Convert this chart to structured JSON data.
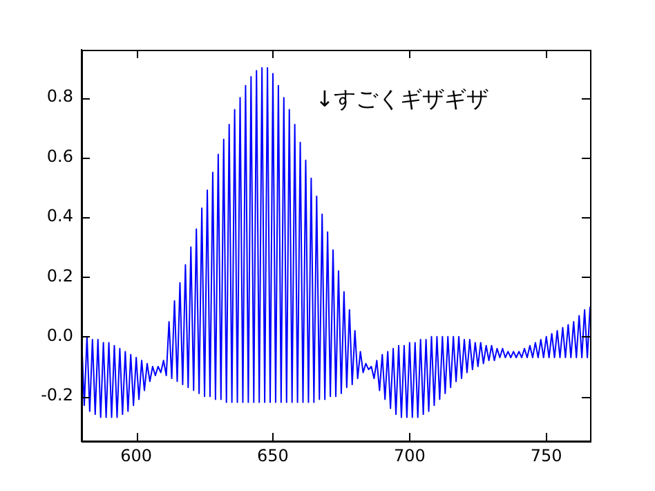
{
  "chart_data": {
    "type": "line",
    "color": "#0000ff",
    "xlim": [
      580,
      766
    ],
    "ylim": [
      -0.35,
      0.96
    ],
    "xticks": [
      600,
      650,
      700,
      750
    ],
    "yticks": [
      {
        "value": -0.2,
        "label": "-0.2"
      },
      {
        "value": 0,
        "label": "0.0"
      },
      {
        "value": 0.2,
        "label": "0.2"
      },
      {
        "value": 0.4,
        "label": "0.4"
      },
      {
        "value": 0.6,
        "label": "0.6"
      },
      {
        "value": 0.8,
        "label": "0.8"
      }
    ],
    "grid": false,
    "legend": false,
    "marker": "none",
    "line_style": "solid",
    "annotations": [
      "↓すごくギザギザ"
    ],
    "x": [
      580,
      581,
      582,
      583,
      584,
      585,
      586,
      587,
      588,
      589,
      590,
      591,
      592,
      593,
      594,
      595,
      596,
      597,
      598,
      599,
      600,
      601,
      602,
      603,
      604,
      605,
      606,
      607,
      608,
      609,
      610,
      611,
      612,
      613,
      614,
      615,
      616,
      617,
      618,
      619,
      620,
      621,
      622,
      623,
      624,
      625,
      626,
      627,
      628,
      629,
      630,
      631,
      632,
      633,
      634,
      635,
      636,
      637,
      638,
      639,
      640,
      641,
      642,
      643,
      644,
      645,
      646,
      647,
      648,
      649,
      650,
      651,
      652,
      653,
      654,
      655,
      656,
      657,
      658,
      659,
      660,
      661,
      662,
      663,
      664,
      665,
      666,
      667,
      668,
      669,
      670,
      671,
      672,
      673,
      674,
      675,
      676,
      677,
      678,
      679,
      680,
      681,
      682,
      683,
      684,
      685,
      686,
      687,
      688,
      689,
      690,
      691,
      692,
      693,
      694,
      695,
      696,
      697,
      698,
      699,
      700,
      701,
      702,
      703,
      704,
      705,
      706,
      707,
      708,
      709,
      710,
      711,
      712,
      713,
      714,
      715,
      716,
      717,
      718,
      719,
      720,
      721,
      722,
      723,
      724,
      725,
      726,
      727,
      728,
      729,
      730,
      731,
      732,
      733,
      734,
      735,
      736,
      737,
      738,
      739,
      740,
      741,
      742,
      743,
      744,
      745,
      746,
      747,
      748,
      749,
      750,
      751,
      752,
      753,
      754,
      755,
      756,
      757,
      758,
      759,
      760,
      761,
      762,
      763,
      764,
      765,
      766
    ],
    "values": [
      0.0,
      -0.23,
      0.0,
      -0.25,
      -0.01,
      -0.26,
      -0.01,
      -0.27,
      -0.02,
      -0.27,
      -0.02,
      -0.27,
      -0.03,
      -0.27,
      -0.04,
      -0.26,
      -0.05,
      -0.25,
      -0.06,
      -0.23,
      -0.07,
      -0.21,
      -0.08,
      -0.18,
      -0.09,
      -0.15,
      -0.1,
      -0.13,
      -0.1,
      -0.12,
      -0.08,
      -0.13,
      0.05,
      -0.14,
      0.12,
      -0.15,
      0.18,
      -0.16,
      0.24,
      -0.17,
      0.3,
      -0.18,
      0.36,
      -0.19,
      0.43,
      -0.2,
      0.49,
      -0.2,
      0.55,
      -0.21,
      0.61,
      -0.21,
      0.66,
      -0.22,
      0.71,
      -0.22,
      0.76,
      -0.22,
      0.8,
      -0.22,
      0.84,
      -0.22,
      0.87,
      -0.22,
      0.89,
      -0.22,
      0.9,
      -0.22,
      0.9,
      -0.22,
      0.88,
      -0.22,
      0.84,
      -0.22,
      0.8,
      -0.22,
      0.76,
      -0.22,
      0.71,
      -0.22,
      0.65,
      -0.22,
      0.59,
      -0.22,
      0.53,
      -0.22,
      0.47,
      -0.21,
      0.41,
      -0.21,
      0.35,
      -0.2,
      0.29,
      -0.2,
      0.22,
      -0.19,
      0.15,
      -0.17,
      0.09,
      -0.16,
      0.02,
      -0.14,
      -0.05,
      -0.12,
      -0.09,
      -0.11,
      -0.1,
      -0.14,
      -0.08,
      -0.18,
      -0.06,
      -0.21,
      -0.05,
      -0.24,
      -0.04,
      -0.26,
      -0.03,
      -0.27,
      -0.03,
      -0.27,
      -0.02,
      -0.27,
      -0.02,
      -0.27,
      -0.01,
      -0.26,
      -0.01,
      -0.25,
      0.0,
      -0.23,
      0.0,
      -0.21,
      0.0,
      -0.19,
      0.0,
      -0.17,
      0.0,
      -0.15,
      0.0,
      -0.14,
      -0.01,
      -0.12,
      -0.01,
      -0.11,
      -0.02,
      -0.1,
      -0.02,
      -0.09,
      -0.03,
      -0.08,
      -0.03,
      -0.08,
      -0.04,
      -0.07,
      -0.04,
      -0.07,
      -0.05,
      -0.07,
      -0.05,
      -0.07,
      -0.05,
      -0.07,
      -0.04,
      -0.07,
      -0.03,
      -0.07,
      -0.02,
      -0.07,
      -0.01,
      -0.07,
      0.0,
      -0.07,
      0.01,
      -0.07,
      0.02,
      -0.07,
      0.03,
      -0.07,
      0.04,
      -0.07,
      0.05,
      -0.07,
      0.07,
      -0.07,
      0.09,
      -0.07,
      0.1
    ]
  }
}
